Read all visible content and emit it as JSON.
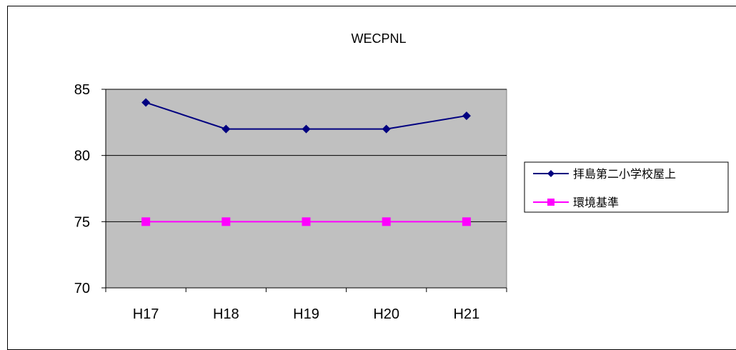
{
  "chart_data": {
    "type": "line",
    "title": "WECPNL",
    "xlabel": "",
    "ylabel": "",
    "categories": [
      "H17",
      "H18",
      "H19",
      "H20",
      "H21"
    ],
    "ylim": [
      70,
      85
    ],
    "yticks": [
      70,
      75,
      80,
      85
    ],
    "grid": true,
    "legend_position": "right",
    "plot_background": "#c0c0c0",
    "series": [
      {
        "name": "拝島第二小学校屋上",
        "values": [
          84,
          82,
          82,
          82,
          83
        ],
        "color": "#000080",
        "marker": "diamond"
      },
      {
        "name": "環境基準",
        "values": [
          75,
          75,
          75,
          75,
          75
        ],
        "color": "#ff00ff",
        "marker": "square"
      }
    ]
  }
}
